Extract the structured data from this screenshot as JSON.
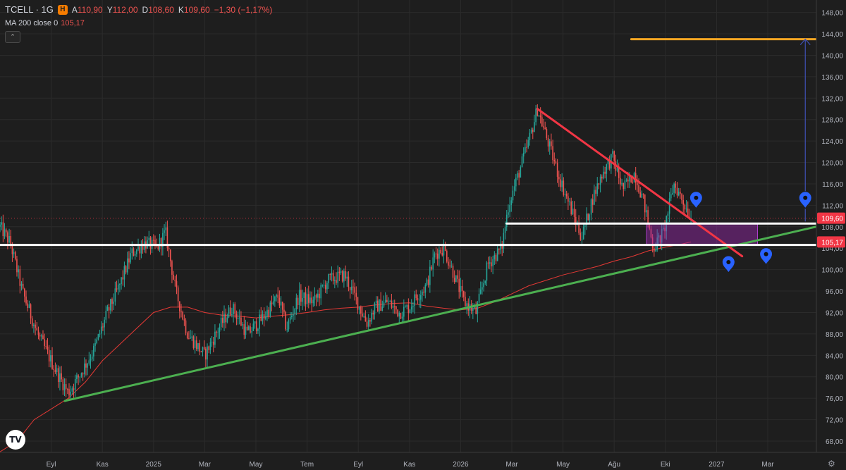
{
  "header": {
    "symbol": "TCELL · 1G",
    "badge": "H",
    "open_label": "A",
    "open": "110,90",
    "high_label": "Y",
    "high": "112,00",
    "low_label": "D",
    "low": "108,60",
    "close_label": "K",
    "close": "109,60",
    "change": "−1,30 (−1,17%)"
  },
  "indicator": {
    "label": "MA 200 close 0",
    "value": "105,17"
  },
  "logo_text": "TV",
  "colors": {
    "background": "#1e1e1e",
    "grid": "#2b2b2b",
    "up": "#26a69a",
    "down": "#ef5350",
    "ma": "#e53935",
    "support_line": "#4caf50",
    "resistance_line": "#f23645",
    "level_lines": "#ffffff",
    "target_line": "#f5a623",
    "arrow": "#3f51b5",
    "marker": "#2962ff",
    "zone": "#9c27b0",
    "price_badge": "#f23645"
  },
  "chart_data": {
    "type": "candlestick",
    "symbol": "TCELL",
    "interval": "1G",
    "ylim": [
      66,
      150
    ],
    "y_ticks": [
      "68,00",
      "72,00",
      "76,00",
      "80,00",
      "84,00",
      "88,00",
      "92,00",
      "96,00",
      "100,00",
      "104,00",
      "108,00",
      "112,00",
      "116,00",
      "120,00",
      "124,00",
      "128,00",
      "132,00",
      "136,00",
      "140,00",
      "144,00",
      "148,00"
    ],
    "x_ticks": [
      "Eyl",
      "Kas",
      "2025",
      "Mar",
      "May",
      "Tem",
      "Eyl",
      "Kas",
      "2026",
      "Mar",
      "May",
      "Ağu",
      "Eki",
      "2027",
      "Mar"
    ],
    "last_price": "109,60",
    "ma_label": "105,17",
    "price_path": [
      [
        0,
        108
      ],
      [
        0.6,
        105
      ],
      [
        1.3,
        96
      ],
      [
        2.2,
        88
      ],
      [
        3.3,
        81
      ],
      [
        4,
        77
      ],
      [
        4.6,
        80
      ],
      [
        5.5,
        85
      ],
      [
        6.3,
        92
      ],
      [
        7,
        97
      ],
      [
        7.7,
        103
      ],
      [
        8.5,
        105
      ],
      [
        9.2,
        104
      ],
      [
        9.7,
        107
      ],
      [
        10.3,
        96
      ],
      [
        11,
        88
      ],
      [
        12,
        84
      ],
      [
        12.8,
        89
      ],
      [
        13.6,
        93
      ],
      [
        14.5,
        88
      ],
      [
        15.4,
        91
      ],
      [
        16.3,
        95
      ],
      [
        16.8,
        89
      ],
      [
        17.5,
        95
      ],
      [
        18.4,
        94
      ],
      [
        19.2,
        98
      ],
      [
        20.2,
        99
      ],
      [
        20.8,
        95
      ],
      [
        21.5,
        90
      ],
      [
        22,
        93
      ],
      [
        22.7,
        94
      ],
      [
        23.4,
        92
      ],
      [
        24,
        93
      ],
      [
        24.4,
        95
      ],
      [
        25,
        97
      ],
      [
        25.5,
        103
      ],
      [
        26,
        104
      ],
      [
        26.5,
        100
      ],
      [
        27.2,
        94
      ],
      [
        27.9,
        92
      ],
      [
        28.6,
        101
      ],
      [
        29.4,
        104
      ],
      [
        29.8,
        112
      ],
      [
        30.4,
        118
      ],
      [
        31,
        124
      ],
      [
        31.5,
        130
      ],
      [
        32.1,
        124
      ],
      [
        32.8,
        117
      ],
      [
        33.5,
        111
      ],
      [
        34.1,
        106
      ],
      [
        34.7,
        113
      ],
      [
        35.3,
        118
      ],
      [
        35.9,
        121
      ],
      [
        36.5,
        115
      ],
      [
        37.2,
        118
      ],
      [
        37.7,
        113
      ],
      [
        38.3,
        104
      ],
      [
        38.9,
        107
      ],
      [
        39.5,
        116
      ],
      [
        40,
        113
      ],
      [
        40.5,
        109.6
      ]
    ],
    "ma200": [
      [
        0,
        66
      ],
      [
        1,
        68
      ],
      [
        2,
        72
      ],
      [
        3,
        74
      ],
      [
        4,
        76
      ],
      [
        5,
        79
      ],
      [
        6,
        83
      ],
      [
        7,
        86
      ],
      [
        8,
        89
      ],
      [
        9,
        92
      ],
      [
        10,
        93
      ],
      [
        11,
        93
      ],
      [
        12,
        92
      ],
      [
        13,
        91.5
      ],
      [
        14,
        91.3
      ],
      [
        15,
        91
      ],
      [
        16,
        91.3
      ],
      [
        17,
        91.6
      ],
      [
        18,
        92
      ],
      [
        19,
        92.5
      ],
      [
        20,
        92.8
      ],
      [
        21,
        93
      ],
      [
        22,
        93.4
      ],
      [
        23,
        93.7
      ],
      [
        24,
        93.8
      ],
      [
        25,
        93.2
      ],
      [
        26,
        92.8
      ],
      [
        27,
        92.5
      ],
      [
        28,
        92.8
      ],
      [
        29,
        94
      ],
      [
        30,
        95.5
      ],
      [
        31,
        97
      ],
      [
        32,
        98
      ],
      [
        33,
        99
      ],
      [
        34,
        99.8
      ],
      [
        35,
        100.6
      ],
      [
        36,
        101.6
      ],
      [
        37,
        102.4
      ],
      [
        38,
        103.5
      ],
      [
        39,
        104.2
      ],
      [
        40,
        104.8
      ],
      [
        40.5,
        105.17
      ]
    ],
    "drawings": {
      "support_trendline": [
        [
          3.8,
          75.5
        ],
        [
          48.5,
          108.5
        ]
      ],
      "resistance_trendline": [
        [
          31.5,
          130
        ],
        [
          43.5,
          102.5
        ]
      ],
      "upper_level": [
        [
          29.7,
          108.6
        ],
        [
          48.5,
          108.6
        ]
      ],
      "lower_level": [
        [
          0,
          104.6
        ],
        [
          48.5,
          104.6
        ]
      ],
      "target_level": [
        [
          37,
          143
        ],
        [
          48.5,
          143
        ]
      ],
      "target_arrow": [
        [
          47.2,
          109
        ],
        [
          47.2,
          143
        ]
      ],
      "zone": [
        [
          37.9,
          104.6
        ],
        [
          44.4,
          108.6
        ]
      ],
      "markers": [
        [
          40.8,
          113
        ],
        [
          42.7,
          101
        ],
        [
          44.9,
          102.5
        ],
        [
          47.2,
          113
        ]
      ]
    }
  }
}
